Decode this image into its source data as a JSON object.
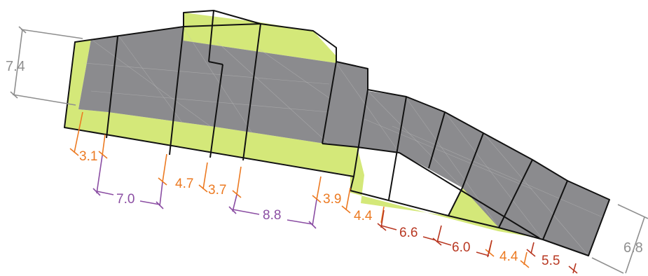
{
  "colors": {
    "surface_green": "#d4e879",
    "surface_gray": "#8b8b8e",
    "dim_gray": "#8f8f8f",
    "dim_orange": "#ec7a22",
    "dim_purple": "#8b4ea3",
    "dim_red": "#b83822"
  },
  "dimensions": {
    "left_height": "7.4",
    "right_height": "6.8",
    "orange": [
      "3.1",
      "4.7",
      "3.7",
      "3.9",
      "4.4",
      "4.4"
    ],
    "purple": [
      "7.0",
      "8.8"
    ],
    "red": [
      "6.6",
      "6.0",
      "5.5"
    ]
  }
}
